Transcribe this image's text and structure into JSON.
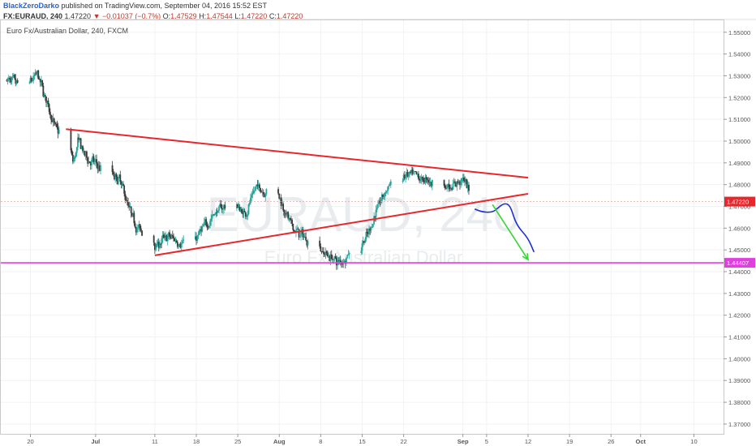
{
  "header": {
    "user": "BlackZeroDarko",
    "published": "published on TradingView.com, September 04, 2016 15:52 EST"
  },
  "quote": {
    "symbol": "FX:EURAUD, 240",
    "price": "1.47220",
    "arrow": "▼",
    "change": "−0.01037 (−0.7%)",
    "o_label": "O:",
    "o": "1.47529",
    "h_label": "H:",
    "h": "1.47544",
    "l_label": "L:",
    "l": "1.47220",
    "c_label": "C:",
    "c": "1.47220"
  },
  "subtitle": "Euro Fx/Australian Dollar, 240, FXCM",
  "watermark": {
    "symbol": "EURAUD, 240",
    "name": "Euro Fx/Australian Dollar"
  },
  "colors": {
    "bull": "#26a69a",
    "bear": "#3a3a3a",
    "trendline": "#e8262b",
    "support": "#e040e0",
    "projection_blue": "#1a2fd8",
    "projection_green": "#35d630",
    "price_line": "#e3a5a5"
  },
  "chart_data": {
    "type": "candlestick",
    "title": "Euro Fx/Australian Dollar, 240, FXCM",
    "x_ticks": [
      "20",
      "Jul",
      "11",
      "18",
      "25",
      "Aug",
      "8",
      "15",
      "22",
      "Sep",
      "5",
      "12",
      "19",
      "26",
      "Oct",
      "10"
    ],
    "y_ticks": [
      "1.55000",
      "1.54000",
      "1.53000",
      "1.52000",
      "1.51000",
      "1.50000",
      "1.49000",
      "1.48000",
      "1.47000",
      "1.46000",
      "1.45000",
      "1.44000",
      "1.43000",
      "1.42000",
      "1.41000",
      "1.40000",
      "1.39000",
      "1.38000",
      "1.37000"
    ],
    "ylim": [
      1.3655,
      1.5555
    ],
    "time_range": [
      "2016-06-15",
      "2016-10-15"
    ],
    "last_price": "1.47220",
    "support_level": "1.44407",
    "close_path": [
      [
        "2016-06-16",
        1.528
      ],
      [
        "2016-06-19",
        1.524
      ],
      [
        "2016-06-21",
        1.531
      ],
      [
        "2016-06-23",
        1.515
      ],
      [
        "2016-06-24",
        1.506
      ],
      [
        "2016-06-25",
        1.503
      ],
      [
        "2016-06-27",
        1.488
      ],
      [
        "2016-06-28",
        1.501
      ],
      [
        "2016-06-29",
        1.493
      ],
      [
        "2016-07-01",
        1.489
      ],
      [
        "2016-07-03",
        1.484
      ],
      [
        "2016-07-05",
        1.482
      ],
      [
        "2016-07-07",
        1.465
      ],
      [
        "2016-07-09",
        1.456
      ],
      [
        "2016-07-11",
        1.452
      ],
      [
        "2016-07-13",
        1.456
      ],
      [
        "2016-07-16",
        1.453
      ],
      [
        "2016-07-18",
        1.456
      ],
      [
        "2016-07-21",
        1.467
      ],
      [
        "2016-07-24",
        1.473
      ],
      [
        "2016-07-26",
        1.466
      ],
      [
        "2016-07-28",
        1.479
      ],
      [
        "2016-07-30",
        1.477
      ],
      [
        "2016-08-01",
        1.474
      ],
      [
        "2016-08-03",
        1.46
      ],
      [
        "2016-08-05",
        1.456
      ],
      [
        "2016-08-07",
        1.452
      ],
      [
        "2016-08-09",
        1.448
      ],
      [
        "2016-08-11",
        1.444
      ],
      [
        "2016-08-14",
        1.452
      ],
      [
        "2016-08-16",
        1.457
      ],
      [
        "2016-08-17",
        1.467
      ],
      [
        "2016-08-19",
        1.478
      ],
      [
        "2016-08-21",
        1.485
      ],
      [
        "2016-08-24",
        1.483
      ],
      [
        "2016-08-27",
        1.481
      ],
      [
        "2016-08-30",
        1.479
      ],
      [
        "2016-09-01",
        1.483
      ],
      [
        "2016-09-02",
        1.475
      ]
    ],
    "trendlines": [
      {
        "name": "upper",
        "from": [
          "2016-06-26",
          1.5055
        ],
        "to": [
          "2016-09-12",
          1.4832
        ]
      },
      {
        "name": "lower",
        "from": [
          "2016-07-11",
          1.4475
        ],
        "to": [
          "2016-09-12",
          1.4758
        ]
      }
    ],
    "projections": [
      {
        "name": "blue-curve",
        "points": [
          [
            "2016-09-03",
            1.4688
          ],
          [
            "2016-09-04",
            1.4675
          ],
          [
            "2016-09-06",
            1.4672
          ],
          [
            "2016-09-07",
            1.4695
          ],
          [
            "2016-09-08",
            1.4715
          ],
          [
            "2016-09-09",
            1.4705
          ],
          [
            "2016-09-10",
            1.4615
          ],
          [
            "2016-09-12",
            1.4555
          ],
          [
            "2016-09-13",
            1.449
          ]
        ]
      },
      {
        "name": "green-arrow",
        "points": [
          [
            "2016-09-06",
            1.4708
          ],
          [
            "2016-09-12",
            1.4455
          ]
        ]
      }
    ]
  }
}
